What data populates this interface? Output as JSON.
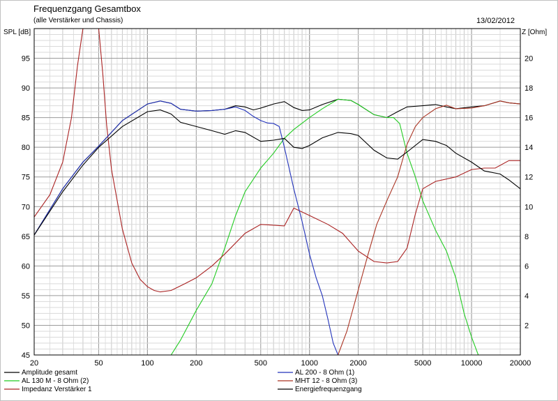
{
  "header": {
    "title": "Frequenzgang Gesamtbox",
    "subtitle": "(alle Verstärker und Chassis)",
    "date": "13/02/2012",
    "y_left_label": "SPL [dB]",
    "y_right_label": "Z [Ohm]"
  },
  "chart_data": {
    "type": "line",
    "title": "Frequenzgang Gesamtbox",
    "subtitle": "(alle Verstärker und Chassis)",
    "xscale": "log",
    "xlim": [
      20,
      20000
    ],
    "ylim": [
      45,
      100
    ],
    "y2lim": [
      0,
      22
    ],
    "ylabel": "SPL [dB]",
    "y2label": "Z [Ohm]",
    "grid": true,
    "legend_position": "bottom",
    "x_ticks": [
      "20",
      "50",
      "100",
      "200",
      "500",
      "1000",
      "2000",
      "5000",
      "10000",
      "20000"
    ],
    "y_ticks": [
      "45",
      "50",
      "55",
      "60",
      "65",
      "70",
      "75",
      "80",
      "85",
      "90",
      "95"
    ],
    "y2_ticks": [
      "2",
      "4",
      "6",
      "8",
      "10",
      "12",
      "14",
      "16",
      "18",
      "20"
    ],
    "series": [
      {
        "name": "Amplitude gesamt",
        "color": "#000000",
        "axis": "left",
        "legend_col": 0,
        "points": [
          [
            20,
            65.2
          ],
          [
            30,
            73
          ],
          [
            40,
            77.5
          ],
          [
            50,
            80.2
          ],
          [
            70,
            84.5
          ],
          [
            100,
            87.3
          ],
          [
            120,
            87.8
          ],
          [
            140,
            87.4
          ],
          [
            160,
            86.4
          ],
          [
            200,
            86.1
          ],
          [
            250,
            86.2
          ],
          [
            300,
            86.4
          ],
          [
            350,
            87.0
          ],
          [
            400,
            86.8
          ],
          [
            450,
            86.3
          ],
          [
            500,
            86.6
          ],
          [
            600,
            87.3
          ],
          [
            700,
            87.7
          ],
          [
            800,
            86.7
          ],
          [
            900,
            86.2
          ],
          [
            1000,
            86.3
          ],
          [
            1200,
            87.2
          ],
          [
            1500,
            88.1
          ],
          [
            1800,
            87.9
          ],
          [
            2000,
            87.2
          ],
          [
            2500,
            85.5
          ],
          [
            3000,
            85.0
          ],
          [
            3500,
            86.0
          ],
          [
            4000,
            86.8
          ],
          [
            5000,
            87.0
          ],
          [
            6000,
            87.2
          ],
          [
            7000,
            86.8
          ],
          [
            8000,
            86.5
          ],
          [
            10000,
            86.8
          ],
          [
            12000,
            87.0
          ],
          [
            15000,
            87.8
          ],
          [
            17000,
            87.5
          ],
          [
            20000,
            87.3
          ]
        ]
      },
      {
        "name": "AL 130 M - 8 Ohm (2)",
        "color": "#22cc22",
        "axis": "left",
        "legend_col": 0,
        "points": [
          [
            140,
            45
          ],
          [
            160,
            47.5
          ],
          [
            200,
            52.5
          ],
          [
            250,
            57
          ],
          [
            300,
            63
          ],
          [
            350,
            68.5
          ],
          [
            400,
            72.5
          ],
          [
            500,
            76.5
          ],
          [
            600,
            79
          ],
          [
            700,
            81.5
          ],
          [
            800,
            83
          ],
          [
            1000,
            85
          ],
          [
            1200,
            86.5
          ],
          [
            1500,
            88.1
          ],
          [
            1800,
            87.9
          ],
          [
            2000,
            87.2
          ],
          [
            2500,
            85.5
          ],
          [
            3000,
            85.0
          ],
          [
            3300,
            85.0
          ],
          [
            3600,
            84
          ],
          [
            4000,
            79
          ],
          [
            4500,
            75
          ],
          [
            5000,
            71
          ],
          [
            6000,
            66
          ],
          [
            7000,
            62.5
          ],
          [
            8000,
            58
          ],
          [
            9000,
            52
          ],
          [
            10000,
            48
          ],
          [
            11000,
            45
          ]
        ]
      },
      {
        "name": "Impedanz Verstärker 1",
        "color": "#aa2222",
        "axis": "right",
        "legend_col": 0,
        "points": [
          [
            20,
            9.3
          ],
          [
            25,
            10.8
          ],
          [
            30,
            13
          ],
          [
            34,
            16
          ],
          [
            37,
            19.5
          ],
          [
            40,
            22
          ],
          [
            50,
            22
          ],
          [
            53,
            19
          ],
          [
            56,
            15.5
          ],
          [
            60,
            12.5
          ],
          [
            70,
            8.5
          ],
          [
            80,
            6.2
          ],
          [
            90,
            5.1
          ],
          [
            100,
            4.6
          ],
          [
            110,
            4.35
          ],
          [
            120,
            4.25
          ],
          [
            140,
            4.35
          ],
          [
            170,
            4.8
          ],
          [
            200,
            5.2
          ],
          [
            250,
            6.0
          ],
          [
            300,
            6.8
          ],
          [
            400,
            8.2
          ],
          [
            500,
            8.8
          ],
          [
            600,
            8.75
          ],
          [
            700,
            8.7
          ],
          [
            800,
            9.9
          ],
          [
            1000,
            9.4
          ],
          [
            1300,
            8.8
          ],
          [
            1600,
            8.2
          ],
          [
            2000,
            7.0
          ],
          [
            2500,
            6.3
          ],
          [
            3000,
            6.2
          ],
          [
            3500,
            6.3
          ],
          [
            4000,
            7.2
          ],
          [
            4500,
            9.5
          ],
          [
            5000,
            11.2
          ],
          [
            6000,
            11.7
          ],
          [
            8000,
            12.0
          ],
          [
            10000,
            12.5
          ],
          [
            12000,
            12.6
          ],
          [
            14000,
            12.6
          ],
          [
            17000,
            13.1
          ],
          [
            20000,
            13.1
          ]
        ]
      },
      {
        "name": "AL 200 - 8 Ohm (1)",
        "color": "#2233bb",
        "axis": "left",
        "legend_col": 1,
        "points": [
          [
            20,
            65.2
          ],
          [
            30,
            73
          ],
          [
            40,
            77.5
          ],
          [
            50,
            80.2
          ],
          [
            70,
            84.5
          ],
          [
            100,
            87.3
          ],
          [
            120,
            87.8
          ],
          [
            140,
            87.4
          ],
          [
            160,
            86.4
          ],
          [
            200,
            86.1
          ],
          [
            250,
            86.2
          ],
          [
            300,
            86.4
          ],
          [
            350,
            86.8
          ],
          [
            400,
            86.2
          ],
          [
            450,
            85.2
          ],
          [
            500,
            84.5
          ],
          [
            550,
            84.1
          ],
          [
            600,
            84.0
          ],
          [
            650,
            83.5
          ],
          [
            700,
            80
          ],
          [
            800,
            73
          ],
          [
            900,
            67.5
          ],
          [
            1000,
            62
          ],
          [
            1100,
            58
          ],
          [
            1200,
            55
          ],
          [
            1300,
            51
          ],
          [
            1400,
            47
          ],
          [
            1500,
            45
          ]
        ]
      },
      {
        "name": "MHT 12 - 8 Ohm (3)",
        "color": "#aa3322",
        "axis": "left",
        "legend_col": 1,
        "points": [
          [
            1500,
            45
          ],
          [
            1700,
            49
          ],
          [
            2000,
            56
          ],
          [
            2300,
            62
          ],
          [
            2600,
            67
          ],
          [
            3000,
            71
          ],
          [
            3500,
            75
          ],
          [
            4000,
            80.5
          ],
          [
            4500,
            83.5
          ],
          [
            5000,
            85
          ],
          [
            6000,
            86.5
          ],
          [
            7000,
            87.1
          ],
          [
            8000,
            86.5
          ],
          [
            10000,
            86.6
          ],
          [
            12000,
            87.0
          ],
          [
            15000,
            87.8
          ],
          [
            17000,
            87.5
          ],
          [
            20000,
            87.3
          ]
        ]
      },
      {
        "name": "Energiefrequenzgang",
        "color": "#000000",
        "axis": "left",
        "legend_col": 1,
        "points": [
          [
            20,
            65.2
          ],
          [
            30,
            72.5
          ],
          [
            40,
            77
          ],
          [
            50,
            80
          ],
          [
            70,
            83.5
          ],
          [
            100,
            86.0
          ],
          [
            120,
            86.3
          ],
          [
            140,
            85.6
          ],
          [
            160,
            84.2
          ],
          [
            200,
            83.5
          ],
          [
            250,
            82.8
          ],
          [
            300,
            82.2
          ],
          [
            350,
            82.8
          ],
          [
            400,
            82.5
          ],
          [
            500,
            81.0
          ],
          [
            600,
            81.2
          ],
          [
            700,
            81.5
          ],
          [
            800,
            80.0
          ],
          [
            900,
            79.8
          ],
          [
            1000,
            80.3
          ],
          [
            1200,
            81.6
          ],
          [
            1500,
            82.5
          ],
          [
            1800,
            82.3
          ],
          [
            2000,
            82.0
          ],
          [
            2500,
            79.5
          ],
          [
            3000,
            78.2
          ],
          [
            3500,
            78.0
          ],
          [
            4000,
            79.2
          ],
          [
            5000,
            81.3
          ],
          [
            6000,
            81.0
          ],
          [
            7000,
            80.3
          ],
          [
            8000,
            79.0
          ],
          [
            10000,
            77.5
          ],
          [
            12000,
            76.0
          ],
          [
            15000,
            75.5
          ],
          [
            17000,
            74.5
          ],
          [
            20000,
            73.0
          ]
        ]
      }
    ]
  }
}
